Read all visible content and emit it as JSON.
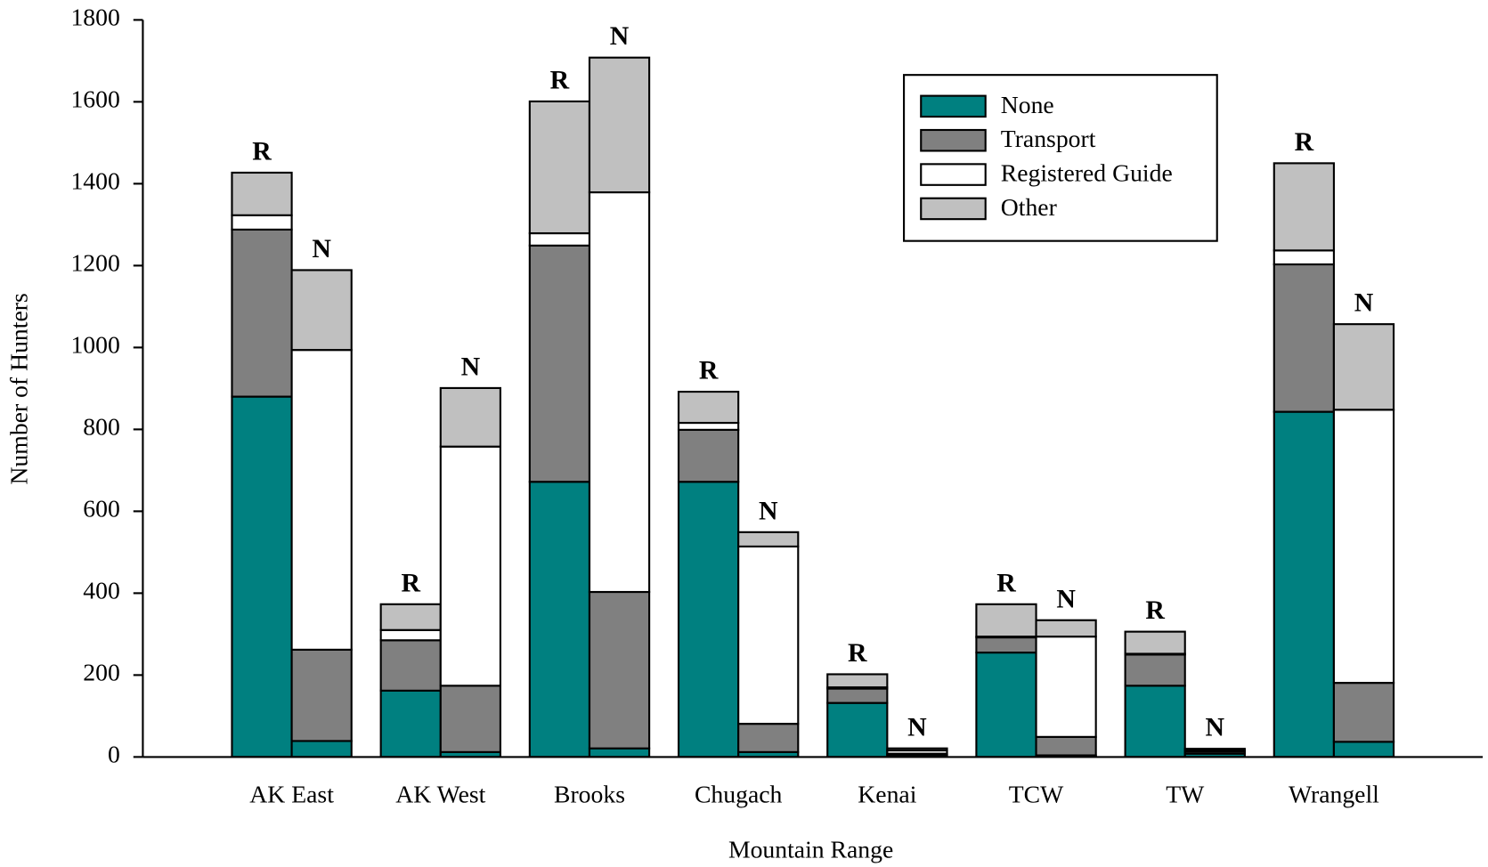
{
  "chart_data": {
    "type": "grouped-stacked-bar",
    "x_label": "Mountain Range",
    "y_label": "Number of Hunters",
    "categories": [
      "AK East",
      "AK West",
      "Brooks",
      "Chugach",
      "Kenai",
      "TCW",
      "TW",
      "Wrangell"
    ],
    "stack_labels": [
      "R",
      "N"
    ],
    "series": [
      {
        "name": "None",
        "color": "#008080",
        "values": [
          [
            880,
            39
          ],
          [
            162,
            12
          ],
          [
            672,
            21
          ],
          [
            672,
            12
          ],
          [
            132,
            5
          ],
          [
            255,
            4
          ],
          [
            174,
            8
          ],
          [
            843,
            37
          ]
        ]
      },
      {
        "name": "Transport",
        "color": "#808080",
        "values": [
          [
            408,
            223
          ],
          [
            123,
            162
          ],
          [
            577,
            382
          ],
          [
            127,
            69
          ],
          [
            35,
            3
          ],
          [
            37,
            45
          ],
          [
            76,
            5
          ],
          [
            360,
            144
          ]
        ]
      },
      {
        "name": "Registered Guide",
        "color": "#ffffff",
        "values": [
          [
            35,
            732
          ],
          [
            25,
            584
          ],
          [
            30,
            976
          ],
          [
            17,
            433
          ],
          [
            3,
            8
          ],
          [
            2,
            245
          ],
          [
            2,
            4
          ],
          [
            34,
            667
          ]
        ]
      },
      {
        "name": "Other",
        "color": "#c0c0c0",
        "values": [
          [
            104,
            195
          ],
          [
            63,
            143
          ],
          [
            322,
            329
          ],
          [
            76,
            35
          ],
          [
            32,
            5
          ],
          [
            79,
            40
          ],
          [
            54,
            3
          ],
          [
            213,
            209
          ]
        ]
      }
    ],
    "ylim": [
      0,
      1800
    ],
    "yticks": [
      0,
      200,
      400,
      600,
      800,
      1000,
      1200,
      1400,
      1600,
      1800
    ],
    "legend": "top-right"
  }
}
